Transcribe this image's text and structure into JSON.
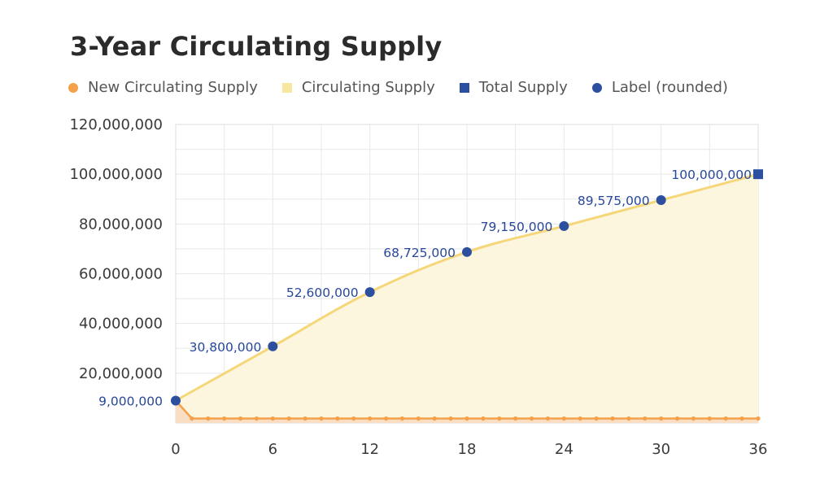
{
  "chart_data": {
    "type": "area",
    "title": "3-Year Circulating Supply",
    "xlabel": "",
    "ylabel": "",
    "xlim": [
      0,
      36
    ],
    "ylim": [
      0,
      120000000
    ],
    "x_ticks": [
      0,
      6,
      12,
      18,
      24,
      30,
      36
    ],
    "y_ticks": [
      20000000,
      40000000,
      60000000,
      80000000,
      100000000,
      120000000
    ],
    "y_tick_labels": [
      "20,000,000",
      "40,000,000",
      "60,000,000",
      "80,000,000",
      "100,000,000",
      "120,000,000"
    ],
    "grid": true,
    "legend": [
      {
        "name": "New Circulating Supply",
        "color": "#f5a04a",
        "marker": "circle"
      },
      {
        "name": "Circulating Supply",
        "color": "#f7e6a0",
        "marker": "square"
      },
      {
        "name": "Total Supply",
        "color": "#2d4fa0",
        "marker": "square"
      },
      {
        "name": "Label (rounded)",
        "color": "#2d4fa0",
        "marker": "circle"
      }
    ],
    "series": [
      {
        "name": "Circulating Supply",
        "x": [
          0,
          6,
          12,
          18,
          24,
          30,
          36
        ],
        "values": [
          9000000,
          30800000,
          52600000,
          68725000,
          79150000,
          89575000,
          100000000
        ]
      },
      {
        "name": "New Circulating Supply",
        "x": [
          0,
          1,
          2,
          3,
          4,
          5,
          6,
          7,
          8,
          9,
          10,
          11,
          12,
          13,
          14,
          15,
          16,
          17,
          18,
          19,
          20,
          21,
          22,
          23,
          24,
          25,
          26,
          27,
          28,
          29,
          30,
          31,
          32,
          33,
          34,
          35,
          36
        ],
        "values": [
          9000000,
          1800000,
          1800000,
          1800000,
          1800000,
          1800000,
          1800000,
          1800000,
          1800000,
          1800000,
          1800000,
          1800000,
          1800000,
          1800000,
          1800000,
          1800000,
          1800000,
          1800000,
          1800000,
          1800000,
          1800000,
          1800000,
          1800000,
          1800000,
          1800000,
          1800000,
          1800000,
          1800000,
          1800000,
          1800000,
          1800000,
          1800000,
          1800000,
          1800000,
          1800000,
          1800000,
          1800000
        ]
      },
      {
        "name": "Total Supply",
        "x": [
          36
        ],
        "values": [
          100000000
        ]
      }
    ],
    "labels": [
      {
        "x": 0,
        "value": 9000000,
        "text": "9,000,000"
      },
      {
        "x": 6,
        "value": 30800000,
        "text": "30,800,000"
      },
      {
        "x": 12,
        "value": 52600000,
        "text": "52,600,000"
      },
      {
        "x": 18,
        "value": 68725000,
        "text": "68,725,000"
      },
      {
        "x": 24,
        "value": 79150000,
        "text": "79,150,000"
      },
      {
        "x": 30,
        "value": 89575000,
        "text": "89,575,000"
      },
      {
        "x": 36,
        "value": 100000000,
        "text": "100,000,000"
      }
    ]
  }
}
